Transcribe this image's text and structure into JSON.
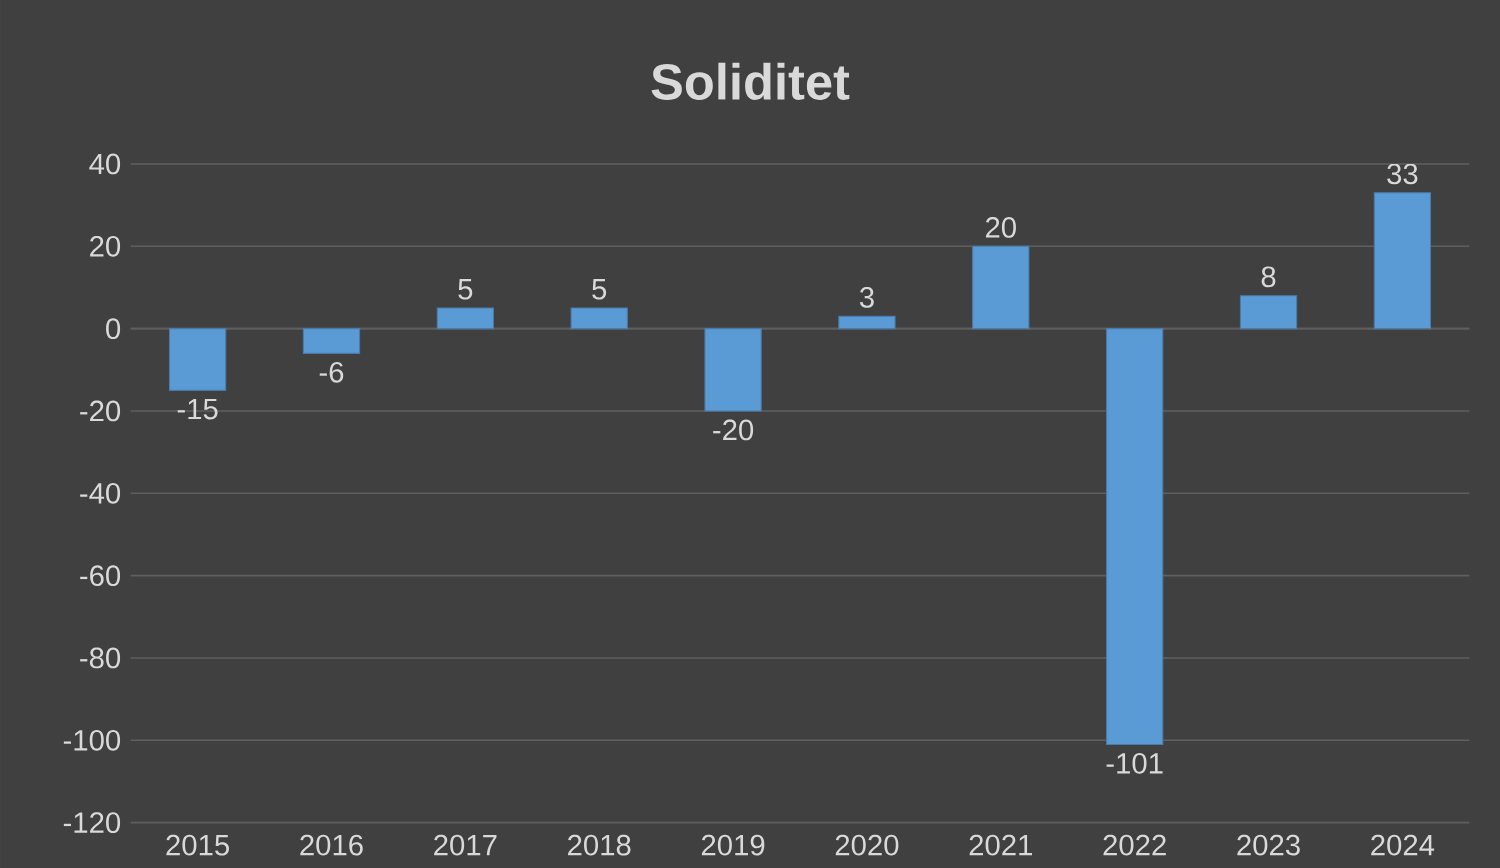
{
  "chart_data": {
    "type": "bar",
    "title": "Soliditet",
    "categories": [
      "2015",
      "2016",
      "2017",
      "2018",
      "2019",
      "2020",
      "2021",
      "2022",
      "2023",
      "2024"
    ],
    "values": [
      -15,
      -6,
      5,
      5,
      -20,
      3,
      20,
      -101,
      8,
      33
    ],
    "color": "#5b9bd5",
    "ylim": [
      -120,
      40
    ],
    "yticks": [
      -120,
      -100,
      -80,
      -60,
      -40,
      -20,
      0,
      20,
      40
    ],
    "grid": "y",
    "data_labels": true
  }
}
